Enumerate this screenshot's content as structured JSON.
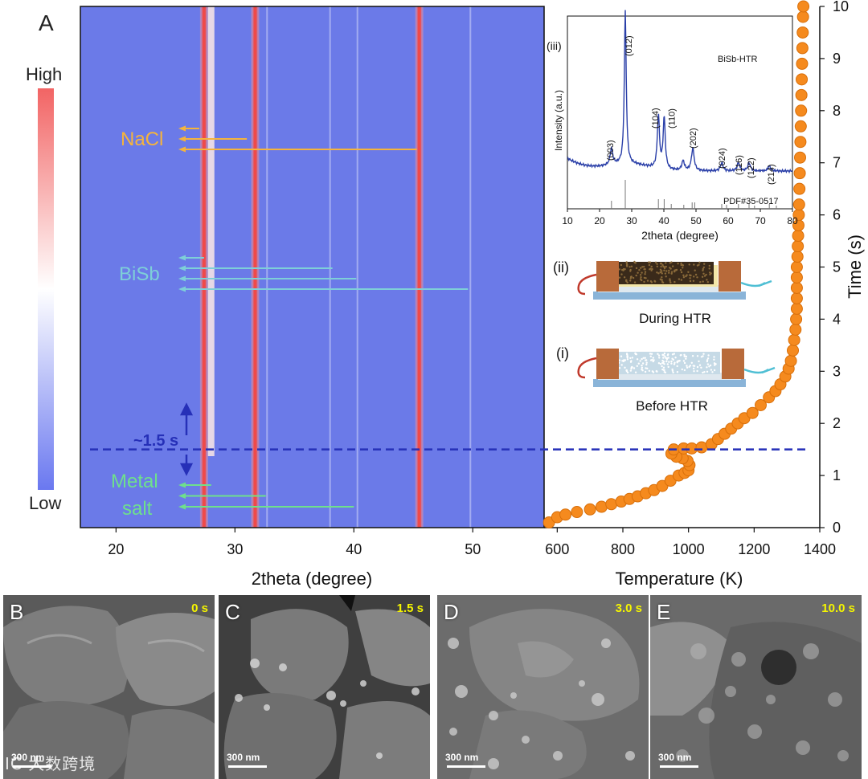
{
  "panel_a": {
    "letter": "A",
    "colorbar": {
      "high": "High",
      "low": "Low",
      "high_color": "#f26464",
      "mid_color": "#ffffff",
      "low_color": "#6a78f0"
    },
    "heatmap": {
      "xlabel": "2theta (degree)",
      "xticks": [
        "20",
        "30",
        "40",
        "50"
      ],
      "xrange": [
        17,
        56
      ],
      "background": "#6b7ae8",
      "lines": [
        {
          "x": 27.4,
          "kind": "hot"
        },
        {
          "x": 28.0,
          "kind": "pale"
        },
        {
          "x": 31.7,
          "kind": "hot"
        },
        {
          "x": 32.7,
          "kind": "faint"
        },
        {
          "x": 40.3,
          "kind": "faint"
        },
        {
          "x": 45.5,
          "kind": "hot"
        },
        {
          "x": 38.0,
          "kind": "faint"
        },
        {
          "x": 49.8,
          "kind": "faint"
        }
      ],
      "arrows": {
        "nacl": {
          "label": "NaCl",
          "color": "#f5b43c",
          "ends": [
            27.0,
            31.0,
            45.3
          ]
        },
        "bisb": {
          "label": "BiSb",
          "color": "#7ecfd8",
          "ends": [
            27.4,
            38.2,
            40.2,
            49.6
          ]
        },
        "metal": {
          "label_line1": "Metal",
          "label_line2": "salt",
          "color": "#6ee08c",
          "ends": [
            28.0,
            32.6,
            40.0
          ]
        }
      },
      "marker": {
        "label": "~1.5 s",
        "time": 1.5,
        "color": "#2630b8"
      }
    },
    "temperature": {
      "xlabel": "Temperature (K)",
      "xticks": [
        "600",
        "800",
        "1000",
        "1200",
        "1400"
      ],
      "xrange": [
        560,
        1400
      ],
      "ylabel": "Time (s)",
      "yticks": [
        "0",
        "1",
        "2",
        "3",
        "4",
        "5",
        "6",
        "7",
        "8",
        "9",
        "10"
      ],
      "yrange": [
        0,
        10
      ],
      "marker_color": "#f58a1e",
      "points": [
        [
          575,
          0.1
        ],
        [
          600,
          0.2
        ],
        [
          625,
          0.25
        ],
        [
          660,
          0.3
        ],
        [
          700,
          0.35
        ],
        [
          735,
          0.4
        ],
        [
          765,
          0.45
        ],
        [
          795,
          0.5
        ],
        [
          820,
          0.55
        ],
        [
          845,
          0.6
        ],
        [
          870,
          0.66
        ],
        [
          895,
          0.72
        ],
        [
          920,
          0.8
        ],
        [
          945,
          0.9
        ],
        [
          970,
          1.0
        ],
        [
          988,
          1.05
        ],
        [
          1000,
          1.1
        ],
        [
          1003,
          1.2
        ],
        [
          997,
          1.28
        ],
        [
          982,
          1.33
        ],
        [
          963,
          1.36
        ],
        [
          948,
          1.42
        ],
        [
          955,
          1.5
        ],
        [
          985,
          1.52
        ],
        [
          1010,
          1.52
        ],
        [
          1040,
          1.54
        ],
        [
          1070,
          1.6
        ],
        [
          1090,
          1.7
        ],
        [
          1110,
          1.8
        ],
        [
          1130,
          1.9
        ],
        [
          1150,
          2.0
        ],
        [
          1170,
          2.1
        ],
        [
          1195,
          2.2
        ],
        [
          1220,
          2.35
        ],
        [
          1245,
          2.5
        ],
        [
          1265,
          2.62
        ],
        [
          1280,
          2.75
        ],
        [
          1295,
          2.9
        ],
        [
          1305,
          3.05
        ],
        [
          1312,
          3.2
        ],
        [
          1318,
          3.4
        ],
        [
          1322,
          3.6
        ],
        [
          1326,
          3.8
        ],
        [
          1328,
          4.0
        ],
        [
          1330,
          4.2
        ],
        [
          1330,
          4.4
        ],
        [
          1330,
          4.6
        ],
        [
          1330,
          4.8
        ],
        [
          1330,
          5.0
        ],
        [
          1332,
          5.2
        ],
        [
          1333,
          5.4
        ],
        [
          1334,
          5.6
        ],
        [
          1335,
          5.8
        ],
        [
          1336,
          6.0
        ],
        [
          1337,
          6.2
        ],
        [
          1338,
          6.5
        ],
        [
          1339,
          6.8
        ],
        [
          1340,
          7.1
        ],
        [
          1341,
          7.4
        ],
        [
          1342,
          7.7
        ],
        [
          1343,
          8.0
        ],
        [
          1344,
          8.3
        ],
        [
          1345,
          8.6
        ],
        [
          1346,
          8.9
        ],
        [
          1347,
          9.2
        ],
        [
          1348,
          9.5
        ],
        [
          1349,
          9.8
        ],
        [
          1350,
          10.0
        ]
      ]
    },
    "inset_xrd": {
      "tag": "(iii)",
      "sample": "BiSb-HTR",
      "xlabel": "2theta (degree)",
      "ylabel": "Intensity (a.u.)",
      "xticks": [
        "10",
        "20",
        "30",
        "40",
        "50",
        "60",
        "70",
        "80"
      ],
      "xrange": [
        10,
        80
      ],
      "reference": "PDF#35-0517",
      "line_color": "#2a3fa8",
      "peaks": [
        {
          "label": "(003)",
          "x": 23.7
        },
        {
          "label": "(012)",
          "x": 28.0
        },
        {
          "label": "(104)",
          "x": 38.3
        },
        {
          "label": "(110)",
          "x": 40.1
        },
        {
          "label": "(202)",
          "x": 49.0
        },
        {
          "label": "(024)",
          "x": 58.0
        },
        {
          "label": "(116)",
          "x": 63.2
        },
        {
          "label": "(122)",
          "x": 66.5
        },
        {
          "label": "(214)",
          "x": 72.8
        }
      ]
    },
    "schematics": [
      {
        "tag": "(ii)",
        "caption": "During HTR"
      },
      {
        "tag": "(i)",
        "caption": "Before HTR"
      }
    ]
  },
  "sem_panels": [
    {
      "letter": "B",
      "time": "0 s",
      "scale": "300 nm"
    },
    {
      "letter": "C",
      "time": "1.5 s",
      "scale": "300 nm"
    },
    {
      "letter": "D",
      "time": "3.0 s",
      "scale": "300 nm"
    },
    {
      "letter": "E",
      "time": "10.0 s",
      "scale": "300 nm"
    }
  ],
  "watermark": "IC 大数跨境"
}
